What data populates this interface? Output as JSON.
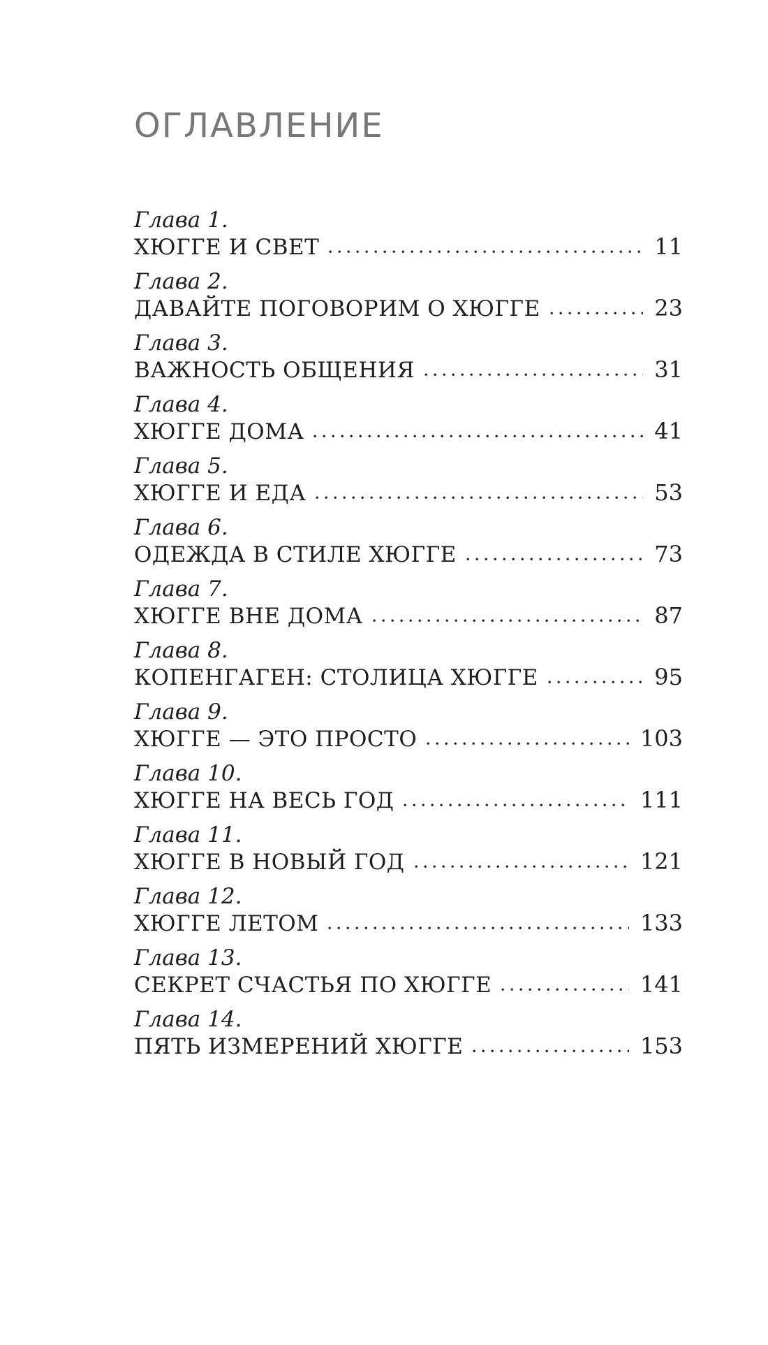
{
  "document": {
    "title": "ОГЛАВЛЕНИЕ",
    "colors": {
      "title_gray": "#77787a",
      "text": "#1e1e1e",
      "background": "#ffffff"
    },
    "entries": [
      {
        "chapter": "Глава 1.",
        "title": "ХЮГГЕ И СВЕТ",
        "page": "11"
      },
      {
        "chapter": "Глава 2.",
        "title": "ДАВАЙТЕ ПОГОВОРИМ О ХЮГГЕ",
        "page": "23"
      },
      {
        "chapter": "Глава 3.",
        "title": "ВАЖНОСТЬ ОБЩЕНИЯ",
        "page": "31"
      },
      {
        "chapter": "Глава 4.",
        "title": "ХЮГГЕ ДОМА",
        "page": "41"
      },
      {
        "chapter": "Глава 5.",
        "title": "ХЮГГЕ И ЕДА",
        "page": "53"
      },
      {
        "chapter": "Глава 6.",
        "title": "ОДЕЖДА В СТИЛЕ ХЮГГЕ",
        "page": "73"
      },
      {
        "chapter": "Глава 7.",
        "title": "ХЮГГЕ ВНЕ ДОМА",
        "page": "87"
      },
      {
        "chapter": "Глава 8.",
        "title": "КОПЕНГАГЕН: СТОЛИЦА ХЮГГЕ",
        "page": "95"
      },
      {
        "chapter": "Глава 9.",
        "title": "ХЮГГЕ — ЭТО ПРОСТО",
        "page": "103"
      },
      {
        "chapter": "Глава 10.",
        "title": "ХЮГГЕ НА ВЕСЬ ГОД",
        "page": "111"
      },
      {
        "chapter": "Глава 11.",
        "title": "ХЮГГЕ В НОВЫЙ ГОД",
        "page": "121"
      },
      {
        "chapter": "Глава 12.",
        "title": "ХЮГГЕ ЛЕТОМ",
        "page": "133"
      },
      {
        "chapter": "Глава 13.",
        "title": "СЕКРЕТ СЧАСТЬЯ ПО ХЮГГЕ",
        "page": "141"
      },
      {
        "chapter": "Глава 14.",
        "title": "ПЯТЬ ИЗМЕРЕНИЙ ХЮГГЕ",
        "page": "153"
      }
    ]
  }
}
